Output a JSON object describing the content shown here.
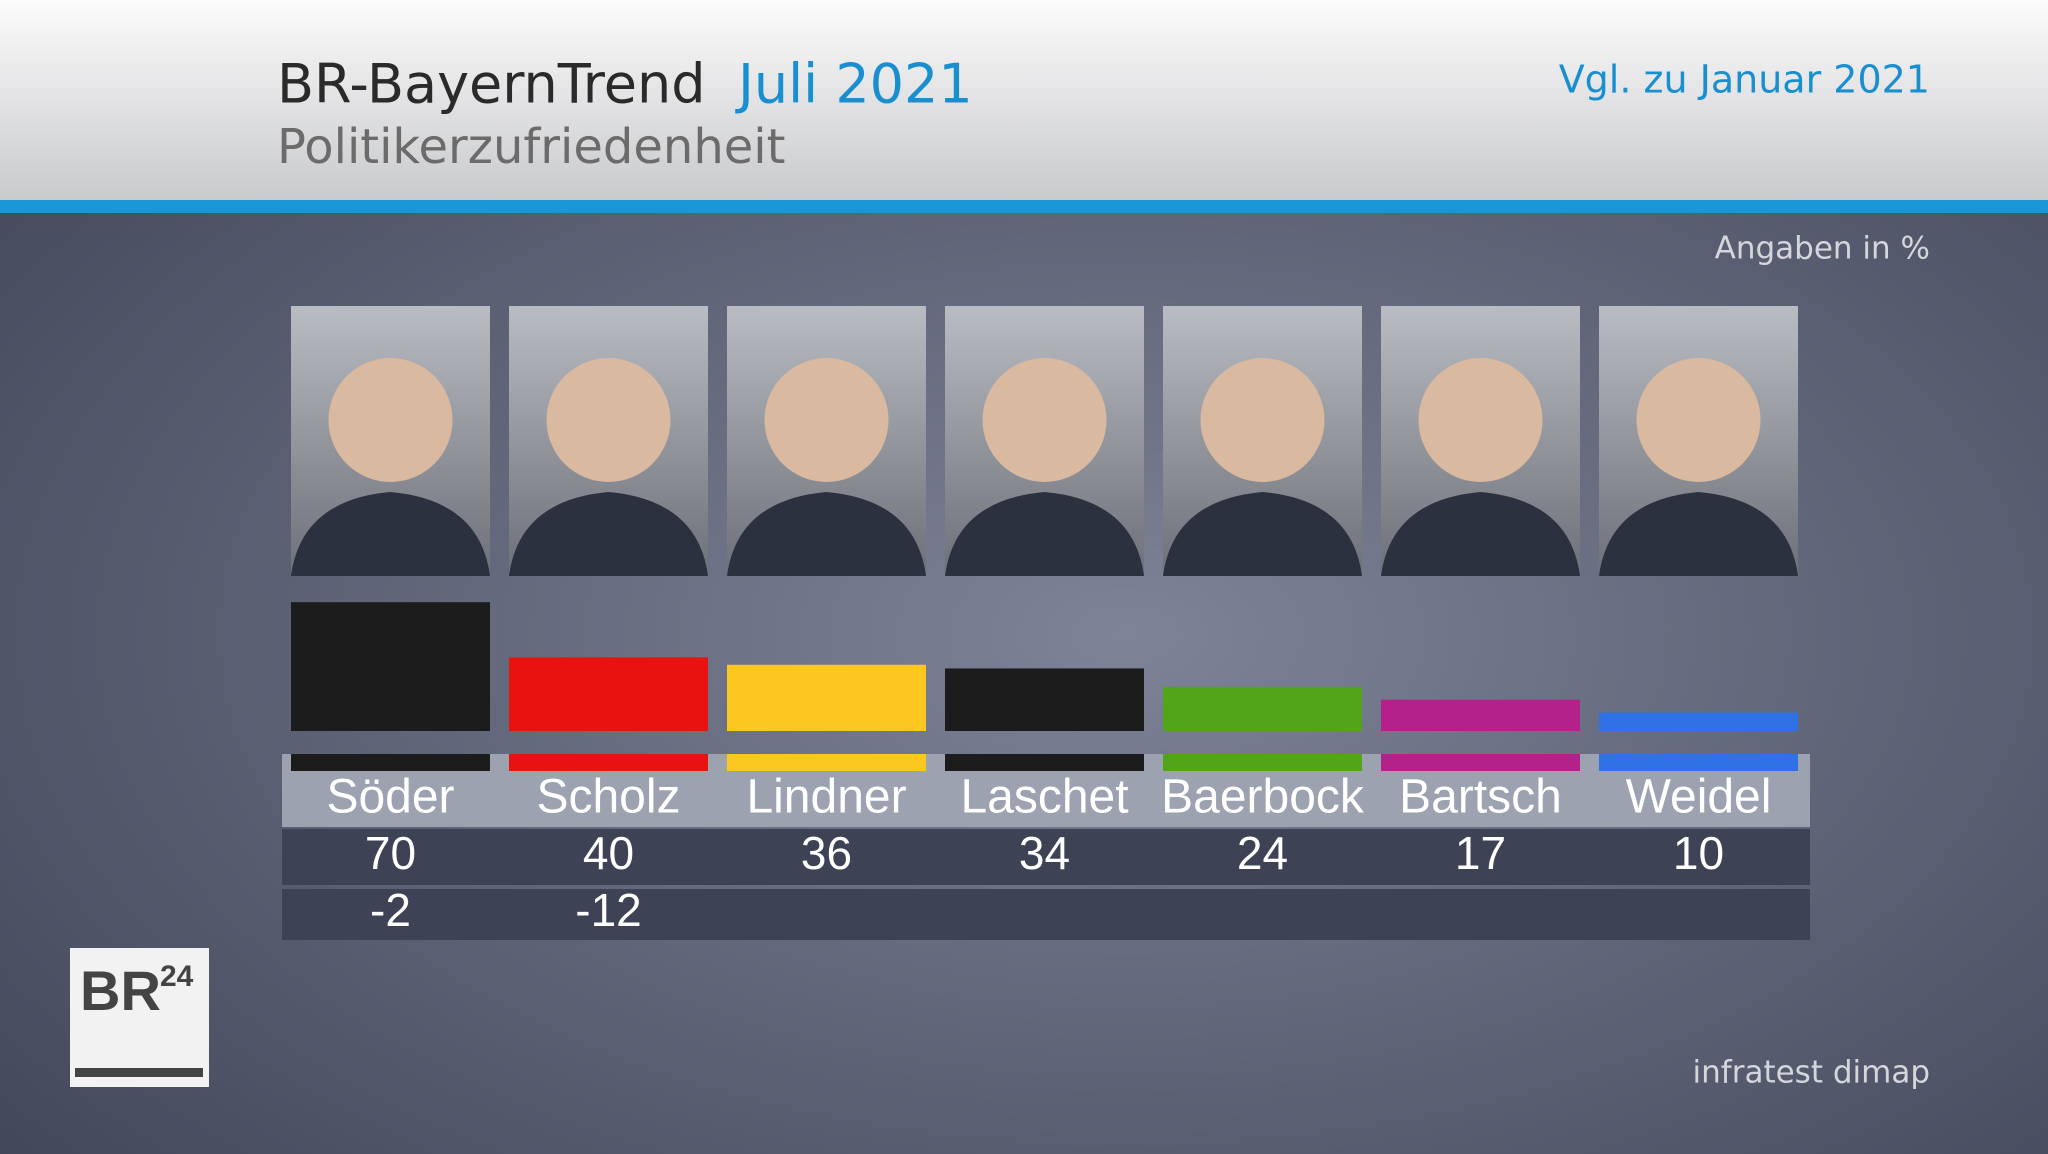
{
  "chart_data": {
    "type": "bar",
    "title": "BR-BayernTrend",
    "title_date": "Juli 2021",
    "subtitle": "Politikerzufriedenheit",
    "comparison_label": "Vgl. zu Januar 2021",
    "unit_note": "Angaben in %",
    "source": "infratest dimap",
    "logo": {
      "text": "BR",
      "superscript": "24"
    },
    "categories": [
      "Söder",
      "Scholz",
      "Lindner",
      "Laschet",
      "Baerbock",
      "Bartsch",
      "Weidel"
    ],
    "values": [
      70,
      40,
      36,
      34,
      24,
      17,
      10
    ],
    "changes": [
      -2,
      -12,
      null,
      null,
      null,
      null,
      null
    ],
    "colors": [
      "#1c1c1c",
      "#e8130f",
      "#fdc722",
      "#1c1c1c",
      "#52a519",
      "#b5218a",
      "#2f72e6"
    ]
  }
}
